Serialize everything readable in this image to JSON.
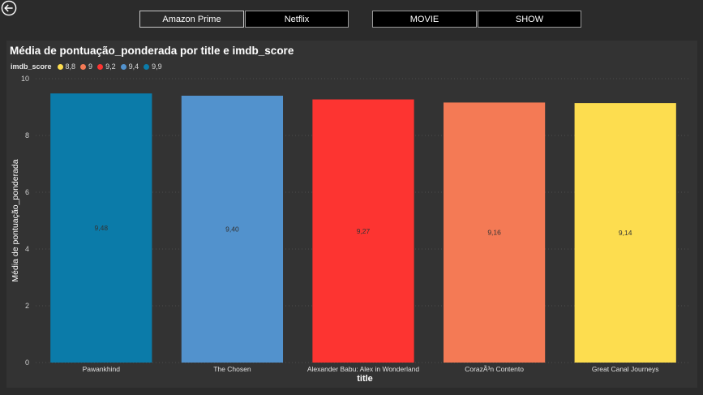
{
  "slicers": {
    "platform": [
      "Amazon Prime",
      "Netflix"
    ],
    "type": [
      "MOVIE",
      "SHOW"
    ],
    "selected_platform": "Amazon Prime"
  },
  "icons": {
    "back": "back-arrow-icon"
  },
  "colors": {
    "background": "#2b2b2b",
    "panel": "#333333",
    "legend": [
      "#fddd4f",
      "#f47a55",
      "#fd3431",
      "#5292cd",
      "#0b7ba9"
    ]
  },
  "chart_data": {
    "type": "bar",
    "title": "Média de pontuação_ponderada por title e imdb_score",
    "xlabel": "title",
    "ylabel": "Média de pontuação_ponderada",
    "ylim": [
      0,
      10
    ],
    "yticks": [
      0,
      2,
      4,
      6,
      8,
      10
    ],
    "grid": true,
    "legend_title": "imdb_score",
    "legend_position": "top-left",
    "legend": [
      {
        "label": "8,8",
        "color": "#fddd4f"
      },
      {
        "label": "9",
        "color": "#f47a55"
      },
      {
        "label": "9,2",
        "color": "#fd3431"
      },
      {
        "label": "9,4",
        "color": "#5292cd"
      },
      {
        "label": "9,9",
        "color": "#0b7ba9"
      }
    ],
    "categories": [
      "Pawankhind",
      "The Chosen",
      "Alexander Babu: Alex in Wonderland",
      "CorazÃ³n Contento",
      "Great Canal Journeys"
    ],
    "values": [
      9.48,
      9.4,
      9.27,
      9.16,
      9.14
    ],
    "data_labels": [
      "9,48",
      "9,40",
      "9,27",
      "9,16",
      "9,14"
    ],
    "bar_colors": [
      "#0b7ba9",
      "#5292cd",
      "#fd3431",
      "#f47a55",
      "#fddd4f"
    ]
  }
}
